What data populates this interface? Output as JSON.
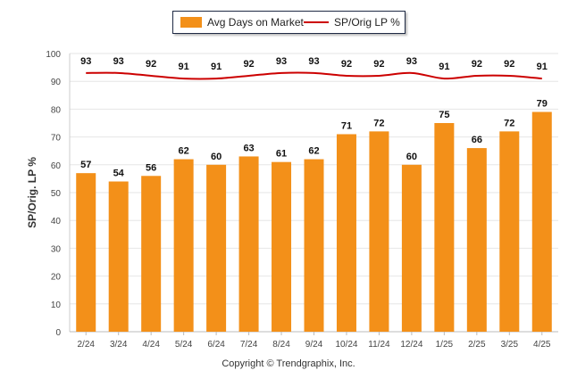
{
  "chart_data": {
    "type": "bar",
    "categories": [
      "2/24",
      "3/24",
      "4/24",
      "5/24",
      "6/24",
      "7/24",
      "8/24",
      "9/24",
      "10/24",
      "11/24",
      "12/24",
      "1/25",
      "2/25",
      "3/25",
      "4/25"
    ],
    "series": [
      {
        "name": "Avg Days on Market",
        "type": "bar",
        "color": "#f39019",
        "values": [
          57,
          54,
          56,
          62,
          60,
          63,
          61,
          62,
          71,
          72,
          60,
          75,
          66,
          72,
          79
        ]
      },
      {
        "name": "SP/Orig LP %",
        "type": "line",
        "color": "#cc0000",
        "values": [
          93,
          93,
          92,
          91,
          91,
          92,
          93,
          93,
          92,
          92,
          93,
          91,
          92,
          92,
          91
        ]
      }
    ],
    "ylabel": "SP/Orig. LP %",
    "ylim": [
      0,
      100
    ],
    "yticks": [
      0,
      10,
      20,
      30,
      40,
      50,
      60,
      70,
      80,
      90,
      100
    ],
    "grid": true,
    "legend_position": "top"
  },
  "legend": {
    "bar_label": "Avg Days on Market",
    "line_label": "SP/Orig LP %"
  },
  "footer": {
    "copyright": "Copyright © Trendgraphix, Inc."
  }
}
